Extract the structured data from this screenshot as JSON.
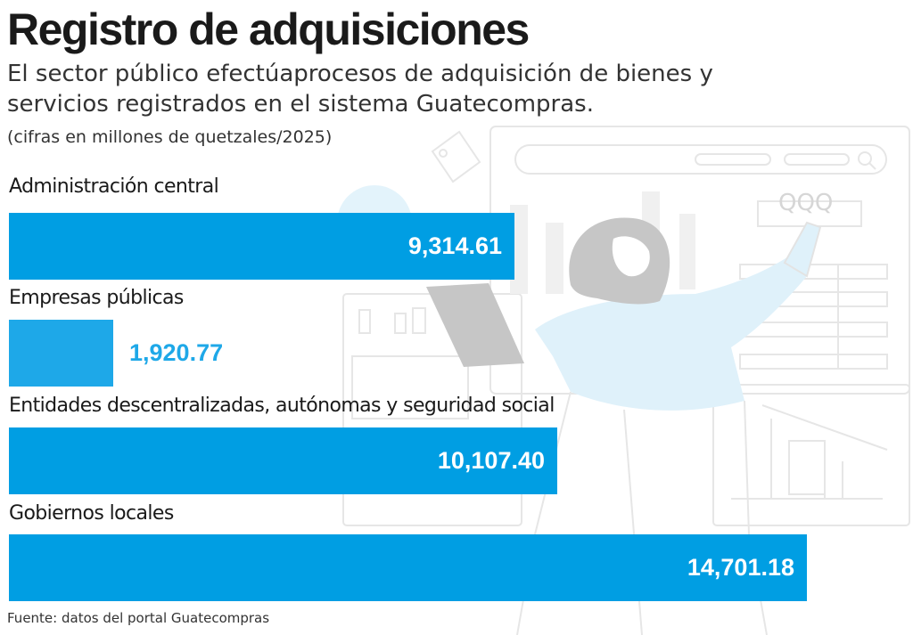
{
  "header": {
    "title": "Registro de adquisiciones",
    "subtitle": "El sector público efectúaprocesos de adquisición de bienes y servicios registrados en el sistema Guatecompras.",
    "units": "(cifras en millones de quetzales/2025)"
  },
  "footer": {
    "source": "Fuente: datos del portal Guatecompras"
  },
  "illustration": {
    "screen_text": "QQQ",
    "description_icon": "woman-with-tablet-illustration"
  },
  "colors": {
    "bar": "#009ee3",
    "bar_light": "#1ea8e8",
    "value_inside": "#ffffff",
    "value_outside": "#1ea8e8",
    "illustration_line": "#e3e3e3",
    "illustration_fill": "#dff1fa",
    "hair": "#c6c6c6"
  },
  "chart_data": {
    "type": "bar",
    "orientation": "horizontal",
    "categories": [
      "Administración central",
      "Empresas públicas",
      "Entidades descentralizadas, autónomas y seguridad social",
      "Gobiernos locales"
    ],
    "values": [
      9314.61,
      1920.77,
      10107.4,
      14701.18
    ],
    "value_labels": [
      "9,314.61",
      "1,920.77",
      "10,107.40",
      "14,701.18"
    ],
    "xlim": [
      0,
      14701.18
    ],
    "grid": false,
    "legend": "none"
  }
}
